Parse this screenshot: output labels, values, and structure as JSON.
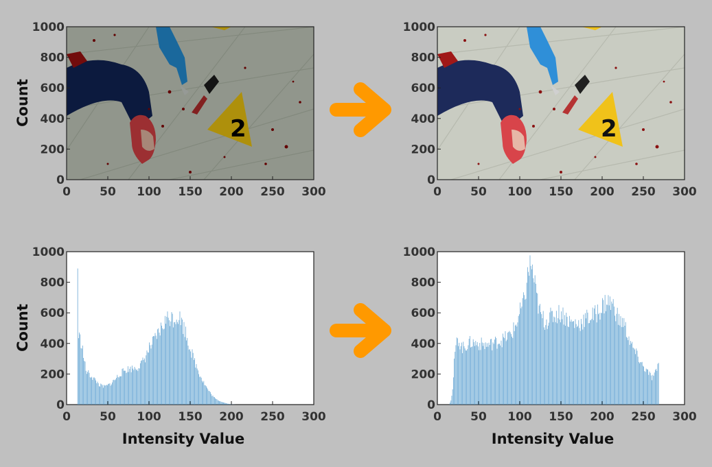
{
  "colors": {
    "background": "#c0c0c0",
    "arrow": "#ff9900",
    "bar": "#5b9fd0",
    "tick_text": "#333333"
  },
  "arrows": [
    {
      "name": "arrow-top",
      "icon": "right-arrow-icon"
    },
    {
      "name": "arrow-bottom",
      "icon": "right-arrow-icon"
    }
  ],
  "chart_data": [
    {
      "id": "before-image",
      "type": "image",
      "description_visible": "photo panel",
      "ylabel": "Count",
      "xlabel": "",
      "xlim": [
        0,
        300
      ],
      "ylim": [
        0,
        1000
      ],
      "xticks": [
        "0",
        "50",
        "100",
        "150",
        "200",
        "250",
        "300"
      ],
      "yticks": [
        "0",
        "200",
        "400",
        "600",
        "800",
        "1000"
      ],
      "image": {
        "brightness": "dark",
        "tone": "original"
      }
    },
    {
      "id": "after-image",
      "type": "image",
      "ylabel": "",
      "xlabel": "",
      "xlim": [
        0,
        300
      ],
      "ylim": [
        0,
        1000
      ],
      "xticks": [
        "0",
        "50",
        "100",
        "150",
        "200",
        "250",
        "300"
      ],
      "yticks": [
        "0",
        "200",
        "400",
        "600",
        "800",
        "1000"
      ],
      "image": {
        "brightness": "bright",
        "tone": "equalized"
      },
      "marker_label": "2"
    },
    {
      "id": "before-histogram",
      "type": "bar",
      "ylabel": "Count",
      "xlabel": "Intensity Value",
      "xlim": [
        0,
        300
      ],
      "ylim": [
        0,
        1000
      ],
      "xticks": [
        "0",
        "50",
        "100",
        "150",
        "200",
        "250",
        "300"
      ],
      "yticks": [
        "0",
        "200",
        "400",
        "600",
        "800",
        "1000"
      ],
      "profile": [
        [
          13,
          890
        ],
        [
          14,
          470
        ],
        [
          16,
          440
        ],
        [
          18,
          410
        ],
        [
          20,
          330
        ],
        [
          23,
          230
        ],
        [
          26,
          210
        ],
        [
          30,
          190
        ],
        [
          35,
          160
        ],
        [
          40,
          130
        ],
        [
          45,
          120
        ],
        [
          50,
          130
        ],
        [
          55,
          150
        ],
        [
          60,
          180
        ],
        [
          65,
          210
        ],
        [
          70,
          230
        ],
        [
          75,
          240
        ],
        [
          80,
          245
        ],
        [
          85,
          250
        ],
        [
          90,
          270
        ],
        [
          95,
          320
        ],
        [
          100,
          380
        ],
        [
          105,
          420
        ],
        [
          110,
          470
        ],
        [
          115,
          520
        ],
        [
          120,
          570
        ],
        [
          125,
          590
        ],
        [
          130,
          580
        ],
        [
          135,
          600
        ],
        [
          140,
          550
        ],
        [
          145,
          470
        ],
        [
          150,
          370
        ],
        [
          155,
          290
        ],
        [
          160,
          220
        ],
        [
          165,
          160
        ],
        [
          170,
          110
        ],
        [
          175,
          70
        ],
        [
          180,
          40
        ],
        [
          185,
          25
        ],
        [
          190,
          15
        ],
        [
          195,
          6
        ],
        [
          200,
          2
        ],
        [
          205,
          0
        ]
      ]
    },
    {
      "id": "after-histogram",
      "type": "bar",
      "ylabel": "",
      "xlabel": "Intensity Value",
      "xlim": [
        0,
        300
      ],
      "ylim": [
        0,
        1000
      ],
      "xticks": [
        "0",
        "50",
        "100",
        "150",
        "200",
        "250",
        "300"
      ],
      "yticks": [
        "0",
        "200",
        "400",
        "600",
        "800",
        "1000"
      ],
      "profile": [
        [
          14,
          0
        ],
        [
          16,
          30
        ],
        [
          18,
          100
        ],
        [
          20,
          280
        ],
        [
          22,
          400
        ],
        [
          25,
          440
        ],
        [
          30,
          380
        ],
        [
          35,
          400
        ],
        [
          40,
          420
        ],
        [
          50,
          410
        ],
        [
          60,
          400
        ],
        [
          70,
          420
        ],
        [
          80,
          440
        ],
        [
          90,
          480
        ],
        [
          95,
          540
        ],
        [
          100,
          620
        ],
        [
          105,
          700
        ],
        [
          108,
          820
        ],
        [
          110,
          900
        ],
        [
          113,
          950
        ],
        [
          116,
          870
        ],
        [
          120,
          720
        ],
        [
          125,
          600
        ],
        [
          130,
          560
        ],
        [
          140,
          600
        ],
        [
          150,
          620
        ],
        [
          160,
          560
        ],
        [
          170,
          540
        ],
        [
          180,
          580
        ],
        [
          190,
          600
        ],
        [
          200,
          660
        ],
        [
          205,
          700
        ],
        [
          210,
          680
        ],
        [
          215,
          650
        ],
        [
          220,
          560
        ],
        [
          225,
          560
        ],
        [
          230,
          480
        ],
        [
          235,
          400
        ],
        [
          240,
          350
        ],
        [
          245,
          300
        ],
        [
          250,
          250
        ],
        [
          255,
          220
        ],
        [
          260,
          180
        ],
        [
          265,
          220
        ],
        [
          268,
          280
        ],
        [
          269,
          0
        ]
      ]
    }
  ]
}
